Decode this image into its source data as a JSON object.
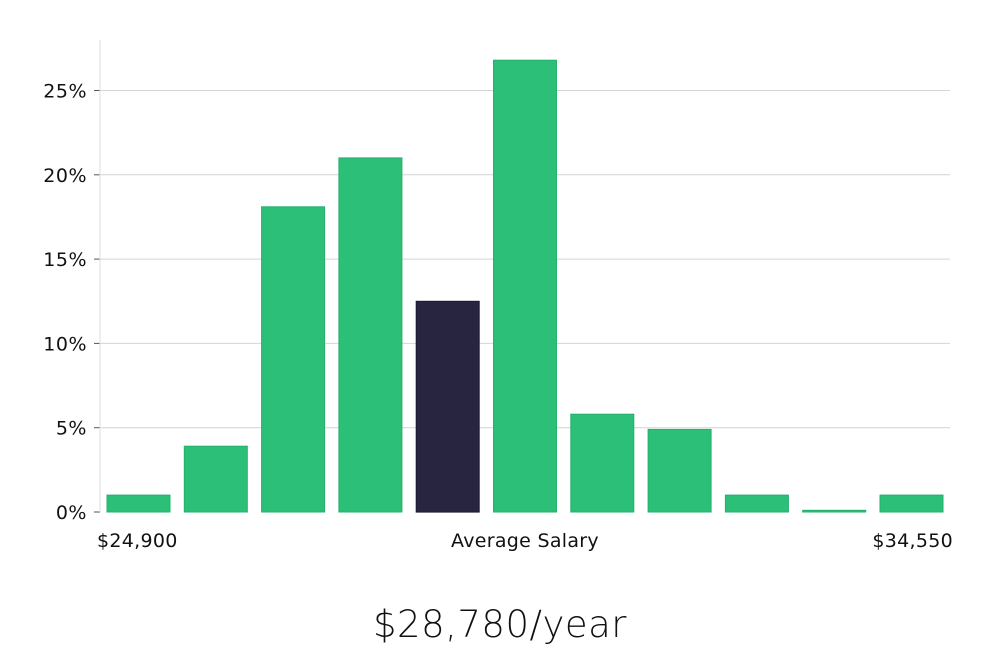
{
  "colors": {
    "bar": "#2bbf78",
    "highlight": "#27253f",
    "grid": "#d4d4d4",
    "axis": "#dddddd"
  },
  "chart_data": {
    "type": "bar",
    "title": "",
    "xlabel": "Average Salary",
    "ylabel": "",
    "x_min_label": "$24,900",
    "x_max_label": "$34,550",
    "values": [
      1,
      3.9,
      18.1,
      21,
      12.5,
      26.8,
      5.8,
      4.9,
      1,
      0.1,
      1
    ],
    "highlight_index": 4,
    "ylim": [
      0,
      28
    ],
    "yticks": [
      0,
      5,
      10,
      15,
      20,
      25
    ],
    "ytick_labels": [
      "0%",
      "5%",
      "10%",
      "15%",
      "20%",
      "25%"
    ],
    "grid": true
  },
  "headline": {
    "salary": "$28,780/year"
  }
}
